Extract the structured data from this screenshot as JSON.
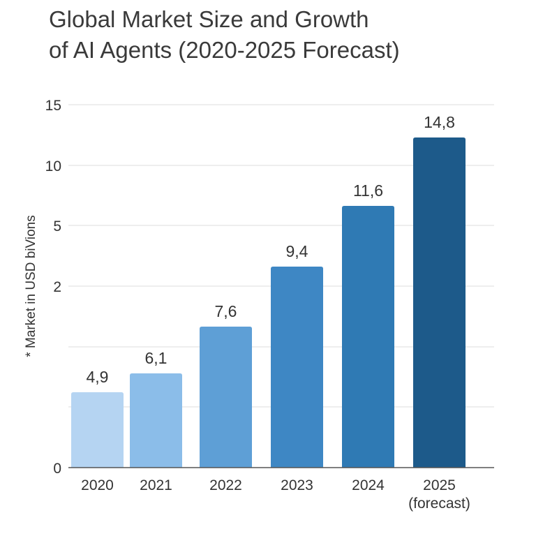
{
  "chart_data": {
    "type": "bar",
    "title": "Global Market Size and Growth of AI Agents (2020-2025 Forecast)",
    "title_lines": [
      "Global Market Size and Growth",
      "of AI Agents (2020-2025 Forecast)"
    ],
    "ylabel": "* Market in USD biVions",
    "xlabel": "",
    "categories": [
      "2020",
      "2021",
      "2022",
      "2023",
      "2024",
      "2025"
    ],
    "category_sublabels": [
      "",
      "",
      "",
      "",
      "",
      "(forecast)"
    ],
    "values": [
      4.9,
      6.1,
      7.6,
      9.4,
      11.6,
      14.8
    ],
    "data_labels": [
      "4,9",
      "6,1",
      "7,6",
      "9,4",
      "11,6",
      "14,8"
    ],
    "y_tick_labels": [
      "0",
      "",
      "",
      "2",
      "5",
      "10",
      "15"
    ],
    "ylim": [
      0,
      15
    ],
    "grid": true,
    "legend": "none",
    "colors": [
      "#b5d4f2",
      "#8bbde9",
      "#5e9fd6",
      "#3e87c4",
      "#2f7ab4",
      "#1d5a8a"
    ]
  }
}
